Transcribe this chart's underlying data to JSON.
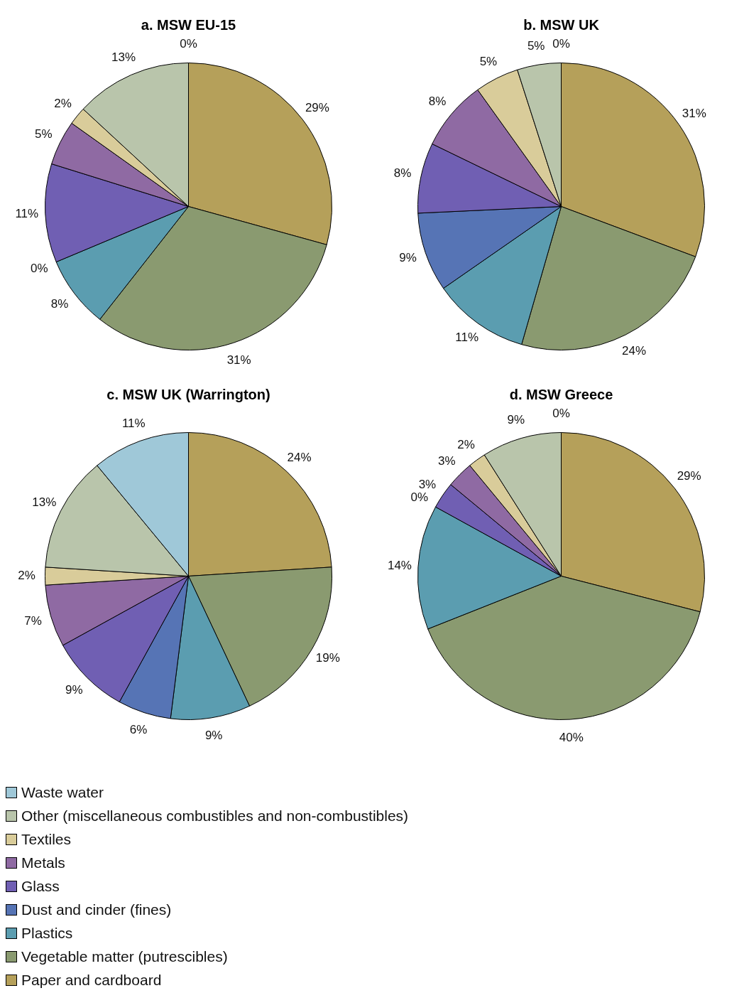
{
  "chart_data": [
    {
      "type": "pie",
      "title": "a. MSW EU-15",
      "categories": [
        "Paper and cardboard",
        "Vegetable matter (putrescibles)",
        "Plastics",
        "Dust and cinder (fines)",
        "Glass",
        "Metals",
        "Textiles",
        "Other (miscellaneous combustibles and non-combustibles)",
        "Waste water"
      ],
      "values": [
        29,
        31,
        8,
        0,
        11,
        5,
        2,
        13,
        0
      ],
      "value_labels": [
        "29%",
        "31%",
        "8%",
        "0%",
        "11%",
        "5%",
        "2%",
        "13%",
        "0%"
      ],
      "colors": [
        "#b5a05a",
        "#8a9a70",
        "#5b9db0",
        "#5674b5",
        "#705fb3",
        "#8f6aa3",
        "#d9cc9a",
        "#b9c5ab",
        "#9fc8d8"
      ],
      "legend": "bottom"
    },
    {
      "type": "pie",
      "title": "b. MSW UK",
      "categories": [
        null,
        null,
        null,
        null,
        null,
        null,
        null,
        null,
        null
      ],
      "values": [
        31,
        24,
        11,
        9,
        8,
        8,
        5,
        5,
        0
      ],
      "value_labels": [
        "31%",
        "24%",
        "11%",
        "9%",
        "8%",
        "8%",
        "5%",
        "5%",
        "0%"
      ],
      "colors": [
        "#b5a05a",
        "#8a9a70",
        "#5b9db0",
        "#5674b5",
        "#705fb3",
        "#8f6aa3",
        "#d9cc9a",
        "#b9c5ab",
        "#9fc8d8"
      ]
    },
    {
      "type": "pie",
      "title": "c. MSW UK (Warrington)",
      "categories": [
        null,
        null,
        null,
        null,
        null,
        null,
        null,
        null,
        null
      ],
      "values": [
        24,
        19,
        9,
        6,
        9,
        7,
        2,
        13,
        11
      ],
      "value_labels": [
        "24%",
        "19%",
        "9%",
        "6%",
        "9%",
        "7%",
        "2%",
        "13%",
        "11%"
      ],
      "colors": [
        "#b5a05a",
        "#8a9a70",
        "#5b9db0",
        "#5674b5",
        "#705fb3",
        "#8f6aa3",
        "#d9cc9a",
        "#b9c5ab",
        "#9fc8d8"
      ]
    },
    {
      "type": "pie",
      "title": "d. MSW Greece",
      "categories": [
        null,
        null,
        null,
        null,
        null,
        null,
        null,
        null,
        null
      ],
      "values": [
        29,
        40,
        14,
        0,
        3,
        3,
        2,
        9,
        0
      ],
      "value_labels": [
        "29%",
        "40%",
        "14%",
        "0%",
        "3%",
        "3%",
        "2%",
        "9%",
        "0%"
      ],
      "colors": [
        "#b5a05a",
        "#8a9a70",
        "#5b9db0",
        "#5674b5",
        "#705fb3",
        "#8f6aa3",
        "#d9cc9a",
        "#b9c5ab",
        "#9fc8d8"
      ]
    }
  ]
}
